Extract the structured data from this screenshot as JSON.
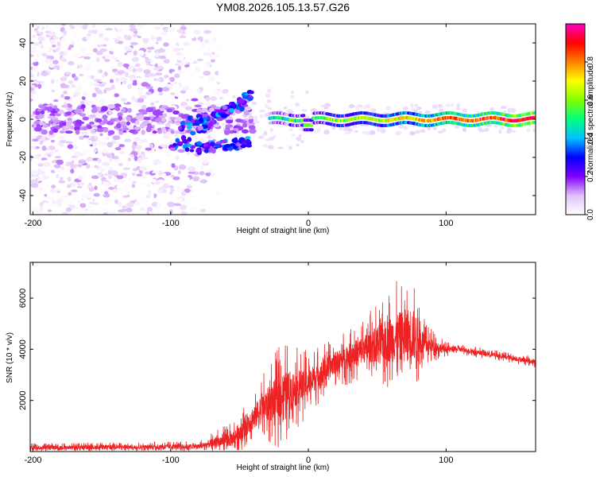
{
  "title": "YM08.2026.105.13.57.G26",
  "chart_data": [
    {
      "type": "heatmap",
      "name": "spectrogram",
      "xlabel": "Height of straight line (km)",
      "ylabel": "Frequency (Hz)",
      "xlim": [
        -202,
        165
      ],
      "ylim": [
        -50,
        50
      ],
      "xticks": [
        -200,
        -100,
        0,
        100
      ],
      "yticks": [
        -40,
        -20,
        0,
        20,
        40
      ],
      "colorbar": {
        "label": "Normalized spectral amplitude",
        "range": [
          0.0,
          1.0
        ],
        "ticks": [
          "0.0",
          "0.2",
          "0.4",
          "0.6",
          "0.8"
        ],
        "tick_values": [
          0.0,
          0.2,
          0.4,
          0.6,
          0.8
        ],
        "colormap": [
          "#ffffff",
          "#e0c0f8",
          "#8000ff",
          "#0000ff",
          "#00c0ff",
          "#00ff80",
          "#80ff00",
          "#ffff00",
          "#ff8000",
          "#ff0000",
          "#ff00c0"
        ]
      },
      "description_features": {
        "noise_region_km": [
          -202,
          -75
        ],
        "fanning_branches": [
          {
            "x": [
              -100,
              -40
            ],
            "f": [
              -16,
              14
            ]
          },
          {
            "x": [
              -95,
              -45
            ],
            "f": [
              -4,
              8
            ]
          },
          {
            "x": [
              -90,
              -42
            ],
            "f": [
              -16,
              -12
            ]
          }
        ],
        "carrier_line": {
          "x": [
            -28,
            165
          ],
          "f": 0,
          "step_at_km": 0,
          "step_to_f": -3
        }
      }
    },
    {
      "type": "line",
      "name": "snr",
      "xlabel": "Height of straight line (km)",
      "ylabel": "SNR (10 * v/v)",
      "xlim": [
        -202,
        165
      ],
      "ylim": [
        0,
        7400
      ],
      "xticks": [
        -200,
        -100,
        0,
        100
      ],
      "yticks": [
        2000,
        4000,
        6000
      ],
      "color": "#ee2222",
      "envelope_km": [
        -202,
        -80,
        -55,
        -35,
        -20,
        0,
        20,
        40,
        60,
        75,
        85,
        100,
        110,
        165
      ],
      "envelope_snr": [
        150,
        200,
        500,
        1600,
        2200,
        2700,
        3500,
        4000,
        4400,
        4600,
        4200,
        4000,
        4000,
        3500
      ],
      "spread_snr": [
        120,
        150,
        500,
        900,
        1500,
        900,
        700,
        900,
        1500,
        1800,
        600,
        200,
        150,
        150
      ]
    }
  ]
}
